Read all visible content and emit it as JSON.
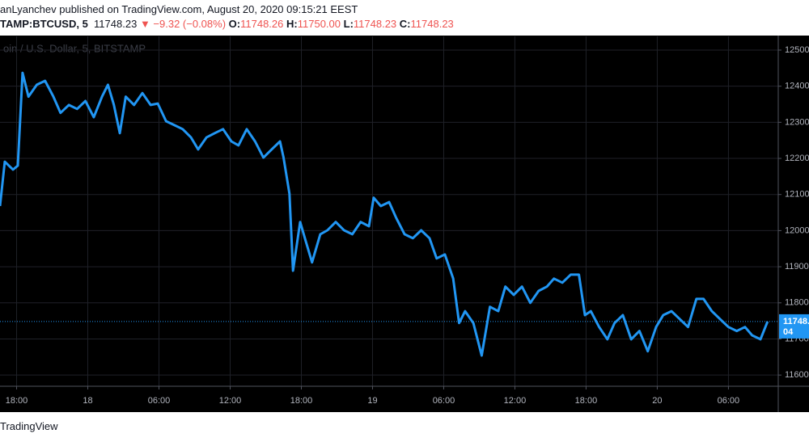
{
  "chart_data": {
    "type": "line",
    "published": "anLyanchev published on TradingView.com, August 20, 2020 09:15:21 EEST",
    "symbol": "TAMP:BTCUSD, 5",
    "last": 11748.23,
    "change": "▼ −9.32 (−0.08%)",
    "open_label": "O:",
    "open": 11748.26,
    "high_label": "H:",
    "high": "11750.00",
    "low_label": "L:",
    "low": 11748.23,
    "close_label": "C:",
    "close": 11748.23,
    "watermark": "oin / U.S. Dollar, 5, BITSTAMP",
    "countdown": "04",
    "footer": "TradingView",
    "series": [
      {
        "name": "BTCUSD",
        "color": "#2196f3",
        "x": [
          16.6,
          17.0,
          17.7,
          18.1,
          18.5,
          19.0,
          19.7,
          20.4,
          21.1,
          21.7,
          22.4,
          23.1,
          23.8,
          24.5,
          25.2,
          25.7,
          26.2,
          26.7,
          27.2,
          27.9,
          28.6,
          29.3,
          29.9,
          30.6,
          31.3,
          32.0,
          32.7,
          33.3,
          34.0,
          34.7,
          35.4,
          36.1,
          36.7,
          37.4,
          38.1,
          38.8,
          39.5,
          40.2,
          40.5,
          41.0,
          41.3,
          41.9,
          42.4,
          42.9,
          43.6,
          44.2,
          44.9,
          45.6,
          46.3,
          47.0,
          47.7,
          48.1,
          48.7,
          49.4,
          50.0,
          50.7,
          51.4,
          52.1,
          52.8,
          53.4,
          54.1,
          54.8,
          55.3,
          55.8,
          56.5,
          57.2,
          57.9,
          58.6,
          59.2,
          59.9,
          60.6,
          61.3,
          62.0,
          62.7,
          63.3,
          64.0,
          64.7,
          65.4,
          65.9,
          66.4,
          67.1,
          67.8,
          68.4,
          69.1,
          69.8,
          70.5,
          71.2,
          71.9,
          72.5,
          73.2,
          73.9,
          74.6,
          75.3,
          75.9,
          76.6,
          77.3,
          78.0,
          78.7,
          79.4,
          80.0,
          80.7,
          81.3
        ],
        "values": [
          12068,
          12191,
          12169,
          12180,
          12437,
          12371,
          12404,
          12415,
          12371,
          12326,
          12348,
          12337,
          12359,
          12314,
          12371,
          12404,
          12348,
          12270,
          12371,
          12348,
          12381,
          12348,
          12352,
          12303,
          12292,
          12281,
          12258,
          12225,
          12258,
          12270,
          12281,
          12247,
          12236,
          12281,
          12247,
          12202,
          12225,
          12247,
          12202,
          12102,
          11889,
          12024,
          11968,
          11912,
          11990,
          12001,
          12024,
          12001,
          11990,
          12024,
          12012,
          12091,
          12068,
          12079,
          12035,
          11990,
          11979,
          12001,
          11979,
          11923,
          11934,
          11867,
          11744,
          11777,
          11744,
          11654,
          11789,
          11777,
          11845,
          11822,
          11845,
          11800,
          11833,
          11845,
          11867,
          11856,
          11878,
          11878,
          11766,
          11777,
          11733,
          11699,
          11744,
          11766,
          11699,
          11722,
          11666,
          11733,
          11766,
          11777,
          11755,
          11733,
          11811,
          11811,
          11777,
          11755,
          11733,
          11722,
          11733,
          11710,
          11699,
          11748.23
        ]
      }
    ],
    "xlim": [
      16.6,
      82.2
    ],
    "xticks": [
      {
        "value": 18,
        "label": "18:00"
      },
      {
        "value": 24,
        "label": "18"
      },
      {
        "value": 30,
        "label": "06:00"
      },
      {
        "value": 36,
        "label": "12:00"
      },
      {
        "value": 42,
        "label": "18:00"
      },
      {
        "value": 48,
        "label": "19"
      },
      {
        "value": 54,
        "label": "06:00"
      },
      {
        "value": 60,
        "label": "12:00"
      },
      {
        "value": 66,
        "label": "18:00"
      },
      {
        "value": 72,
        "label": "20"
      },
      {
        "value": 78,
        "label": "06:00"
      }
    ],
    "ylim": [
      11569,
      12538
    ],
    "yticks": [
      11600,
      11700,
      11800,
      11900,
      12000,
      12100,
      12200,
      12300,
      12400,
      12500
    ],
    "grid": true
  }
}
